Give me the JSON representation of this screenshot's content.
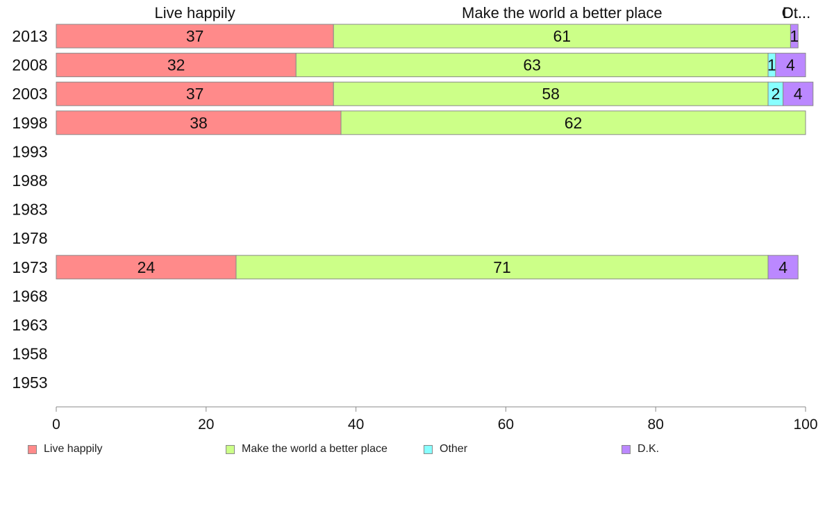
{
  "chart_data": {
    "type": "bar",
    "orientation": "horizontal",
    "stacked": true,
    "categories": [
      "2013",
      "2008",
      "2003",
      "1998",
      "1993",
      "1988",
      "1983",
      "1978",
      "1973",
      "1968",
      "1963",
      "1958",
      "1953"
    ],
    "series": [
      {
        "name": "Live happily",
        "color": "#ff8a8a",
        "values": [
          37,
          32,
          37,
          38,
          null,
          null,
          null,
          null,
          24,
          null,
          null,
          null,
          null
        ]
      },
      {
        "name": "Make the world a better place",
        "color": "#ccff88",
        "values": [
          61,
          63,
          58,
          62,
          null,
          null,
          null,
          null,
          71,
          null,
          null,
          null,
          null
        ]
      },
      {
        "name": "Other",
        "color": "#88ffff",
        "values": [
          0,
          1,
          2,
          0,
          null,
          null,
          null,
          null,
          0,
          null,
          null,
          null,
          null
        ]
      },
      {
        "name": "D.K.",
        "color": "#bb88ff",
        "values": [
          1,
          4,
          4,
          0,
          null,
          null,
          null,
          null,
          4,
          null,
          null,
          null,
          null
        ]
      }
    ],
    "top_labels": [
      "Live happily",
      "Make the world a better place",
      "Ot...",
      "D..."
    ],
    "xlim": [
      0,
      100
    ],
    "xticks": [
      0,
      20,
      40,
      60,
      80,
      100
    ],
    "grid": false,
    "legend_placement": "bottom"
  }
}
